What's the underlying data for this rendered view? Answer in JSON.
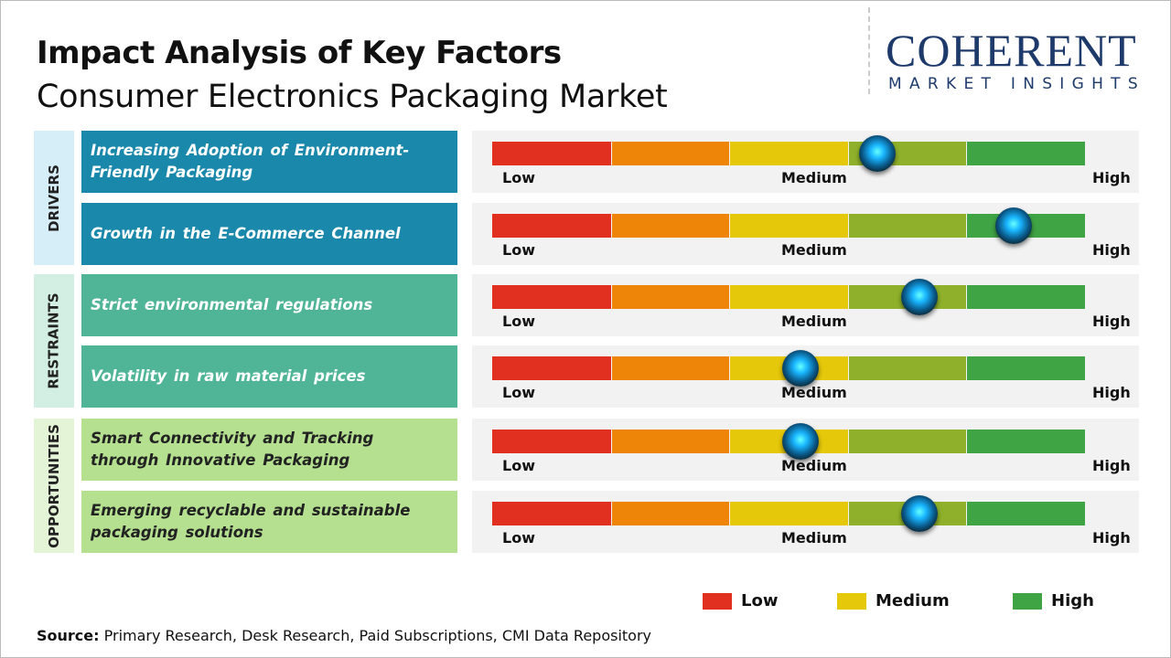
{
  "header": {
    "title": "Impact Analysis of Key Factors",
    "subtitle": "Consumer Electronics Packaging Market"
  },
  "logo": {
    "line1": "COHERENT",
    "line2": "MARKET INSIGHTS"
  },
  "scale_labels": {
    "low": "Low",
    "medium": "Medium",
    "high": "High"
  },
  "colors": {
    "segments": [
      "#e1301f",
      "#ee8408",
      "#e5c80a",
      "#8fb02a",
      "#3fa444"
    ],
    "drivers": "#1a88ab",
    "restraints": "#4fb596",
    "opportunities": "#b4e08f"
  },
  "chart_data": {
    "type": "gauge",
    "scale": [
      "Low",
      "Medium",
      "High"
    ],
    "groups": [
      {
        "name": "DRIVERS",
        "factors": [
          {
            "label": "Increasing Adoption of Environment-Friendly Packaging",
            "impact": 0.65
          },
          {
            "label": "Growth in the E-Commerce Channel",
            "impact": 0.88
          }
        ]
      },
      {
        "name": "RESTRAINTS",
        "factors": [
          {
            "label": "Strict environmental regulations",
            "impact": 0.72
          },
          {
            "label": "Volatility in raw material prices",
            "impact": 0.52
          }
        ]
      },
      {
        "name": "OPPORTUNITIES",
        "factors": [
          {
            "label": "Smart Connectivity and Tracking through Innovative Packaging",
            "impact": 0.52
          },
          {
            "label": "Emerging recyclable and sustainable packaging solutions",
            "impact": 0.72
          }
        ]
      }
    ]
  },
  "legend": [
    {
      "label": "Low",
      "color": "#e1301f"
    },
    {
      "label": "Medium",
      "color": "#e5c80a"
    },
    {
      "label": "High",
      "color": "#3fa444"
    }
  ],
  "source": {
    "prefix": "Source:",
    "text": " Primary Research, Desk Research, Paid Subscriptions, CMI Data Repository"
  }
}
